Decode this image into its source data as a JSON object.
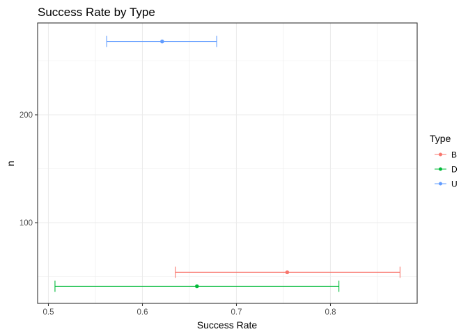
{
  "chart_data": {
    "type": "errorbar",
    "title": "Success Rate by Type",
    "xlabel": "Success Rate",
    "ylabel": "n",
    "xlim": [
      0.49,
      0.884
    ],
    "ylim": [
      31,
      291
    ],
    "x_ticks": [
      0.5,
      0.6,
      0.7,
      0.8
    ],
    "x_tick_labels": [
      "0.5",
      "0.6",
      "0.7",
      "0.8"
    ],
    "y_ticks": [
      100,
      200
    ],
    "y_tick_labels": [
      "100",
      "200"
    ],
    "grid": true,
    "legend": {
      "title": "Type",
      "position": "right",
      "entries": [
        "B",
        "D",
        "U"
      ]
    },
    "series": [
      {
        "name": "B",
        "color": "#F8766D",
        "n": 54,
        "rate": 0.754,
        "lower": 0.635,
        "upper": 0.874
      },
      {
        "name": "D",
        "color": "#00BA38",
        "n": 41,
        "rate": 0.658,
        "lower": 0.507,
        "upper": 0.809
      },
      {
        "name": "U",
        "color": "#619CFF",
        "n": 268,
        "rate": 0.621,
        "lower": 0.562,
        "upper": 0.679
      }
    ]
  }
}
